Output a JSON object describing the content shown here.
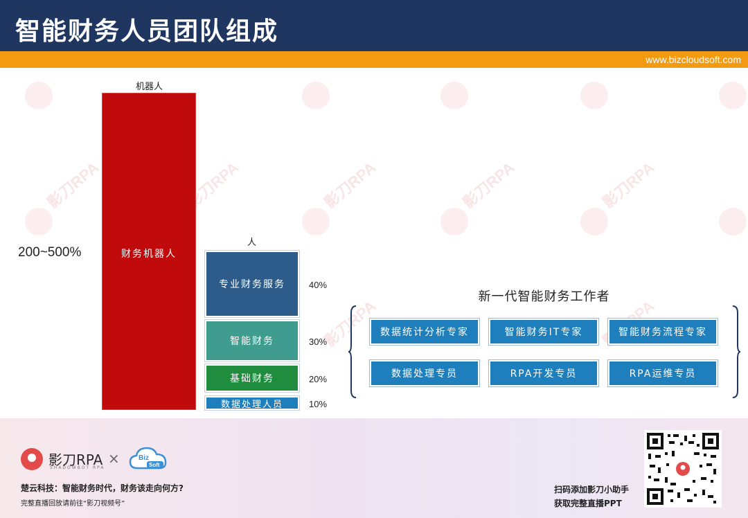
{
  "header": {
    "title": "智能财务人员团队组成",
    "url": "www.bizcloudsoft.com"
  },
  "watermark": {
    "text": "影刀RPA"
  },
  "robot_column": {
    "top_label": "机器人",
    "bar_label": "财务机器人",
    "percentage": "200~500%",
    "color": "#c00a0c"
  },
  "human_column": {
    "top_label": "人",
    "segments": [
      {
        "label": "专业财务服务",
        "percent": "40%",
        "color": "#2d5b8a"
      },
      {
        "label": "智能财务",
        "percent": "30%",
        "color": "#3f9c8e"
      },
      {
        "label": "基础财务",
        "percent": "20%",
        "color": "#1f8c3e"
      },
      {
        "label": "数据处理人员",
        "percent": "10%",
        "color": "#1f7fbd"
      }
    ]
  },
  "new_workers": {
    "title": "新一代智能财务工作者",
    "roles": [
      "数据统计分析专家",
      "智能财务IT专家",
      "智能财务流程专家",
      "数据处理专员",
      "RPA开发专员",
      "RPA运维专员"
    ]
  },
  "footer": {
    "brand": "影刀RPA",
    "brand_sub": "SHADOWBOT RPA",
    "times": "×",
    "partner_line1": "Biz",
    "partner_line2": "Soft",
    "line1": "楚云科技：智能财务时代，财务该走向何方?",
    "line2": "完整直播回放请前往“影刀视频号”",
    "qr_label_1": "扫码添加影刀小助手",
    "qr_label_2": "获取完整直播PPT"
  },
  "colors": {
    "header_bg": "#1f3660",
    "accent": "#f29a11",
    "role_bg": "#1f7fbd"
  }
}
